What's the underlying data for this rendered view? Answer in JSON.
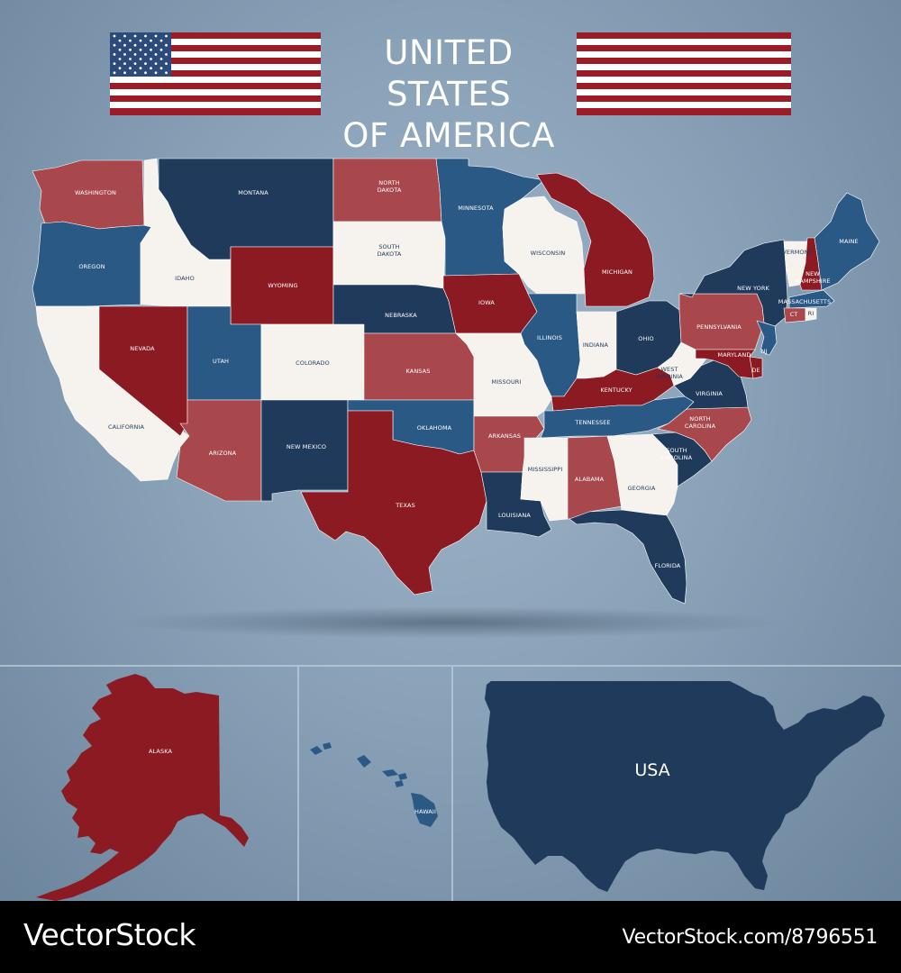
{
  "title": {
    "line1": "UNITED STATES",
    "line2": "OF AMERICA"
  },
  "colors": {
    "dark_red": "#8b1a22",
    "light_red": "#a8474c",
    "navy": "#1f3a5a",
    "blue": "#2b5985",
    "white": "#f6f3ee",
    "background": "#8aa2b8"
  },
  "states": [
    {
      "name": "WASHINGTON",
      "color": "light_red"
    },
    {
      "name": "OREGON",
      "color": "blue"
    },
    {
      "name": "CALIFORNIA",
      "color": "white"
    },
    {
      "name": "IDAHO",
      "color": "white"
    },
    {
      "name": "NEVADA",
      "color": "dark_red"
    },
    {
      "name": "MONTANA",
      "color": "navy"
    },
    {
      "name": "WYOMING",
      "color": "dark_red"
    },
    {
      "name": "UTAH",
      "color": "blue"
    },
    {
      "name": "ARIZONA",
      "color": "light_red"
    },
    {
      "name": "COLORADO",
      "color": "white"
    },
    {
      "name": "NEW MEXICO",
      "color": "navy"
    },
    {
      "name": "NORTH\nDAKOTA",
      "color": "light_red"
    },
    {
      "name": "SOUTH\nDAKOTA",
      "color": "white"
    },
    {
      "name": "NEBRASKA",
      "color": "navy"
    },
    {
      "name": "KANSAS",
      "color": "light_red"
    },
    {
      "name": "OKLAHOMA",
      "color": "blue"
    },
    {
      "name": "TEXAS",
      "color": "dark_red"
    },
    {
      "name": "MINNESOTA",
      "color": "blue"
    },
    {
      "name": "IOWA",
      "color": "dark_red"
    },
    {
      "name": "MISSOURI",
      "color": "white"
    },
    {
      "name": "ARKANSAS",
      "color": "light_red"
    },
    {
      "name": "LOUISIANA",
      "color": "navy"
    },
    {
      "name": "WISCONSIN",
      "color": "white"
    },
    {
      "name": "ILLINOIS",
      "color": "blue"
    },
    {
      "name": "MICHIGAN",
      "color": "dark_red"
    },
    {
      "name": "INDIANA",
      "color": "white"
    },
    {
      "name": "OHIO",
      "color": "navy"
    },
    {
      "name": "KENTUCKY",
      "color": "dark_red"
    },
    {
      "name": "TENNESSEE",
      "color": "blue"
    },
    {
      "name": "MISSISSIPPI",
      "color": "white"
    },
    {
      "name": "ALABAMA",
      "color": "light_red"
    },
    {
      "name": "GEORGIA",
      "color": "white"
    },
    {
      "name": "FLORIDA",
      "color": "navy"
    },
    {
      "name": "SOUTH\nCAROLINA",
      "color": "navy"
    },
    {
      "name": "NORTH\nCAROLINA",
      "color": "light_red"
    },
    {
      "name": "VIRGINIA",
      "color": "navy"
    },
    {
      "name": "WEST\nVIRGINIA",
      "color": "white"
    },
    {
      "name": "PENNSYLVANIA",
      "color": "light_red"
    },
    {
      "name": "NEW YORK",
      "color": "navy"
    },
    {
      "name": "VERMONT",
      "color": "white"
    },
    {
      "name": "NEW\nHAMPSHIRE",
      "color": "dark_red"
    },
    {
      "name": "MAINE",
      "color": "blue"
    },
    {
      "name": "MASSACHUSETTS",
      "color": "blue"
    },
    {
      "name": "CT",
      "color": "light_red"
    },
    {
      "name": "RI",
      "color": "white"
    },
    {
      "name": "NJ",
      "color": "blue"
    },
    {
      "name": "DE",
      "color": "dark_red"
    },
    {
      "name": "MARYLAND",
      "color": "dark_red"
    }
  ],
  "insets": {
    "alaska": {
      "name": "ALASKA",
      "color": "dark_red"
    },
    "hawaii": {
      "name": "HAWAII",
      "color": "blue"
    },
    "usa": {
      "name": "USA",
      "color": "navy"
    }
  },
  "footer": {
    "brand": "VectorStock",
    "credit": "VectorStock.com/8796551"
  }
}
